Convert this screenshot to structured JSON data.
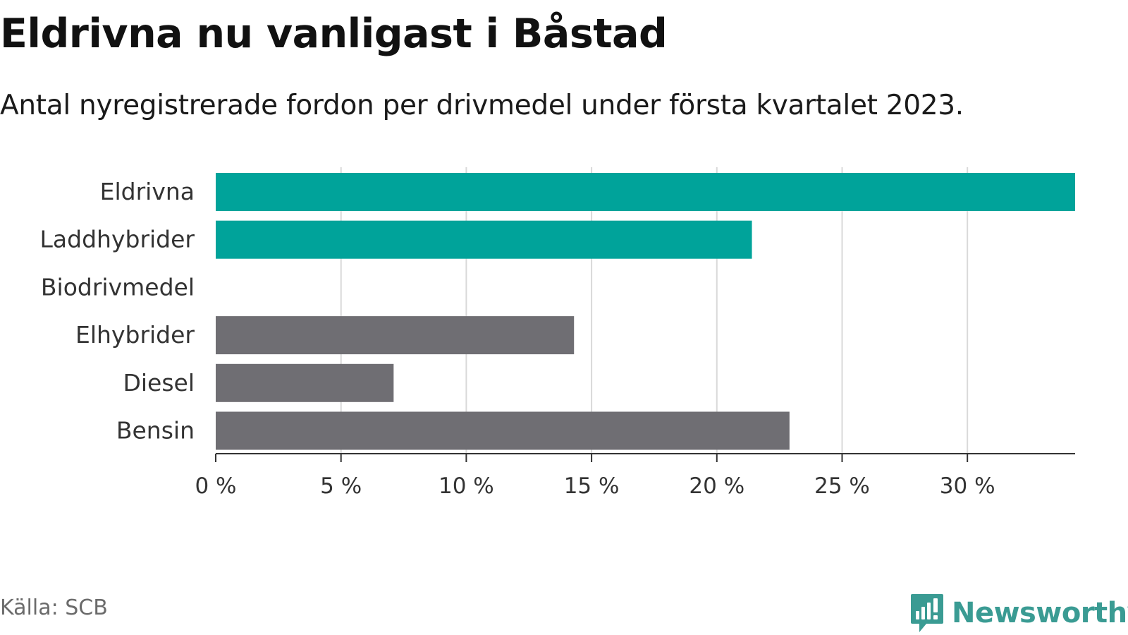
{
  "header": {
    "title": "Eldrivna nu vanligast i Båstad",
    "subtitle": "Antal nyregistrerade fordon per drivmedel under första kvartalet 2023."
  },
  "footer": {
    "source": "Källa: SCB",
    "brand": "Newsworthy",
    "brand_icon": "bar-chart-exclamation-icon"
  },
  "colors": {
    "highlight": "#00a39a",
    "neutral": "#6f6e73",
    "grid": "#d9d9d9",
    "axis": "#333333",
    "brand": "#3a9b93"
  },
  "chart_data": {
    "type": "bar",
    "orientation": "horizontal",
    "title": "Eldrivna nu vanligast i Båstad",
    "subtitle": "Antal nyregistrerade fordon per drivmedel under första kvartalet 2023.",
    "xlabel": "",
    "ylabel": "",
    "categories": [
      "Eldrivna",
      "Laddhybrider",
      "Biodrivmedel",
      "Elhybrider",
      "Diesel",
      "Bensin"
    ],
    "values": [
      34.3,
      21.4,
      0,
      14.3,
      7.1,
      22.9
    ],
    "bar_colors": [
      "#00a39a",
      "#00a39a",
      "#00a39a",
      "#6f6e73",
      "#6f6e73",
      "#6f6e73"
    ],
    "xlim": [
      0,
      34.3
    ],
    "xticks": [
      0,
      5,
      10,
      15,
      20,
      25,
      30
    ],
    "xtick_labels": [
      "0 %",
      "5 %",
      "10 %",
      "15 %",
      "20 %",
      "25 %",
      "30 %"
    ],
    "grid": "vertical",
    "legend": "none"
  }
}
